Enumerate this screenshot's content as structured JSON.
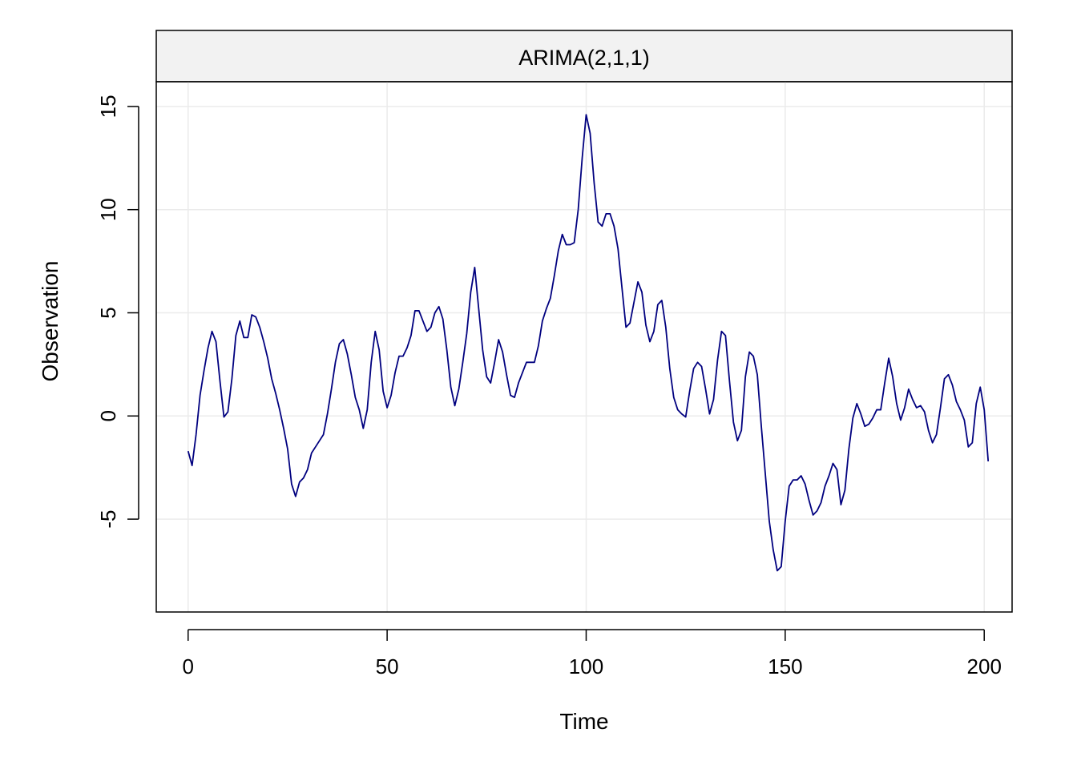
{
  "colors": {
    "series": "#00007f",
    "strip_fill": "#f2f2f2",
    "grid": "#ebebeb",
    "frame": "#000000",
    "background": "#ffffff"
  },
  "chart_data": {
    "type": "line",
    "title": "ARIMA(2,1,1)",
    "xlabel": "Time",
    "ylabel": "Observation",
    "xlim": [
      -8,
      207
    ],
    "ylim": [
      -9.5,
      16.2
    ],
    "x_ticks": [
      0,
      50,
      100,
      150,
      200
    ],
    "y_ticks": [
      -5,
      0,
      5,
      10,
      15
    ],
    "x_tick_labels": [
      "0",
      "50",
      "100",
      "150",
      "200"
    ],
    "y_tick_labels": [
      "-5",
      "0",
      "5",
      "10",
      "15"
    ],
    "grid": true,
    "legend": "none",
    "series": [
      {
        "x_start": 0,
        "x_step": 1,
        "values": [
          -1.7,
          -2.4,
          -0.9,
          1.0,
          2.2,
          3.3,
          4.1,
          3.6,
          1.7,
          -0.05,
          0.2,
          1.8,
          3.9,
          4.6,
          3.8,
          3.8,
          4.9,
          4.8,
          4.3,
          3.6,
          2.8,
          1.8,
          1.1,
          0.3,
          -0.6,
          -1.6,
          -3.3,
          -3.9,
          -3.2,
          -3.0,
          -2.6,
          -1.8,
          -1.5,
          -1.2,
          -0.9,
          0.1,
          1.3,
          2.6,
          3.5,
          3.7,
          3.0,
          2.0,
          0.9,
          0.3,
          -0.6,
          0.3,
          2.6,
          4.1,
          3.2,
          1.2,
          0.4,
          1.0,
          2.1,
          2.9,
          2.9,
          3.3,
          3.9,
          5.1,
          5.1,
          4.6,
          4.1,
          4.3,
          5.0,
          5.3,
          4.7,
          3.2,
          1.4,
          0.5,
          1.3,
          2.6,
          4.0,
          6.0,
          7.2,
          5.2,
          3.2,
          1.9,
          1.6,
          2.6,
          3.7,
          3.1,
          2.0,
          1.0,
          0.9,
          1.6,
          2.1,
          2.6,
          2.6,
          2.6,
          3.4,
          4.6,
          5.2,
          5.7,
          6.8,
          8.0,
          8.8,
          8.3,
          8.3,
          8.4,
          10.0,
          12.5,
          14.6,
          13.7,
          11.3,
          9.4,
          9.2,
          9.8,
          9.8,
          9.2,
          8.1,
          6.2,
          4.3,
          4.5,
          5.5,
          6.5,
          6.0,
          4.4,
          3.6,
          4.1,
          5.4,
          5.6,
          4.3,
          2.3,
          0.9,
          0.3,
          0.1,
          -0.05,
          1.2,
          2.3,
          2.6,
          2.4,
          1.3,
          0.1,
          0.8,
          2.7,
          4.1,
          3.9,
          1.7,
          -0.3,
          -1.2,
          -0.7,
          1.9,
          3.1,
          2.9,
          2.0,
          -0.5,
          -2.8,
          -5.1,
          -6.5,
          -7.5,
          -7.3,
          -5.1,
          -3.4,
          -3.1,
          -3.1,
          -2.9,
          -3.3,
          -4.1,
          -4.8,
          -4.6,
          -4.2,
          -3.4,
          -2.9,
          -2.3,
          -2.6,
          -4.3,
          -3.6,
          -1.6,
          -0.1,
          0.6,
          0.1,
          -0.5,
          -0.4,
          -0.1,
          0.3,
          0.3,
          1.6,
          2.8,
          1.9,
          0.6,
          -0.2,
          0.4,
          1.3,
          0.8,
          0.4,
          0.5,
          0.2,
          -0.7,
          -1.3,
          -0.9,
          0.4,
          1.8,
          2.0,
          1.5,
          0.7,
          0.3,
          -0.2,
          -1.5,
          -1.3,
          0.6,
          1.4,
          0.3,
          -2.2
        ]
      }
    ]
  }
}
